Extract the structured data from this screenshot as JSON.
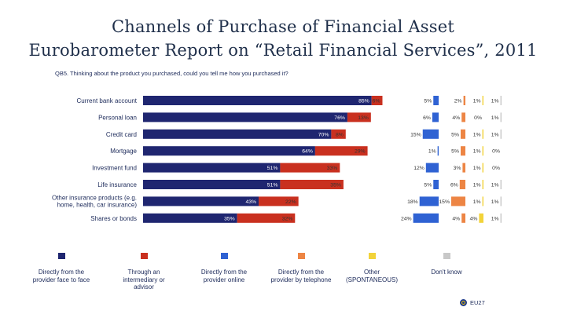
{
  "page": {
    "title_line1": "Channels of Purchase of Financial Asset",
    "title_line2": "Eurobarometer Report on “Retail Financial Services”, 2011",
    "question": "QB5. Thinking about the product you purchased, could you tell me how you purchased it?",
    "footer": "EU27"
  },
  "colors": {
    "face_to_face": "#1f2670",
    "intermediary": "#c9301f",
    "online": "#2f62d3",
    "telephone": "#ed8544",
    "other": "#f2d33a",
    "dont_know": "#c8c8c8"
  },
  "chart_data": {
    "type": "bar",
    "orientation": "horizontal",
    "stacked": "split-panels",
    "categories": [
      "Current bank account",
      "Personal loan",
      "Credit card",
      "Mortgage",
      "Investment fund",
      "Life insurance",
      [
        "Other insurance products (e.g.",
        "home, health, car insurance)"
      ],
      "Shares or bonds"
    ],
    "series": [
      {
        "key": "face_to_face",
        "name": "Directly from the provider face to face",
        "values": [
          85,
          76,
          70,
          64,
          51,
          51,
          43,
          35
        ],
        "labels": [
          "85%",
          "76%",
          "70%",
          "64%",
          "51%",
          "51%",
          "43%",
          "35%"
        ]
      },
      {
        "key": "intermediary",
        "name": "Through an intermediary or advisor",
        "values": [
          6,
          13,
          8,
          29,
          33,
          35,
          22,
          32
        ],
        "labels": [
          "6%",
          "13%",
          "8%",
          "29%",
          "33%",
          "35%",
          "22%",
          "32%"
        ]
      },
      {
        "key": "online",
        "name": "Directly from the provider online",
        "values": [
          5,
          6,
          15,
          1,
          12,
          5,
          18,
          24
        ],
        "labels": [
          "5%",
          "6%",
          "15%",
          "1%",
          "12%",
          "5%",
          "18%",
          "24%"
        ]
      },
      {
        "key": "telephone",
        "name": "Directly from the provider by telephone",
        "values": [
          2,
          4,
          5,
          5,
          3,
          6,
          15,
          4
        ],
        "labels": [
          "2%",
          "4%",
          "5%",
          "5%",
          "3%",
          "6%",
          "15%",
          "4%"
        ]
      },
      {
        "key": "other",
        "name": "Other (SPONTANEOUS)",
        "values": [
          1,
          0,
          1,
          1,
          1,
          1,
          1,
          4
        ],
        "labels": [
          "1%",
          "0%",
          "1%",
          "1%",
          "1%",
          "1%",
          "1%",
          "4%"
        ]
      },
      {
        "key": "dont_know",
        "name": "Don't know",
        "values": [
          1,
          1,
          1,
          0,
          0,
          1,
          1,
          1
        ],
        "labels": [
          "1%",
          "1%",
          "1%",
          "0%",
          "0%",
          "1%",
          "1%",
          "1%"
        ]
      }
    ],
    "xlim": [
      0,
      100
    ],
    "legend_position": "bottom",
    "grid": false
  },
  "legend": [
    {
      "key": "face_to_face",
      "lines": [
        "Directly from the",
        "provider face to face"
      ]
    },
    {
      "key": "intermediary",
      "lines": [
        "Through an",
        "intermediary or",
        "advisor"
      ]
    },
    {
      "key": "online",
      "lines": [
        "Directly from the",
        "provider online"
      ]
    },
    {
      "key": "telephone",
      "lines": [
        "Directly from the",
        "provider by telephone"
      ]
    },
    {
      "key": "other",
      "lines": [
        "Other",
        "(SPONTANEOUS)"
      ]
    },
    {
      "key": "dont_know",
      "lines": [
        "Don't know"
      ]
    }
  ]
}
